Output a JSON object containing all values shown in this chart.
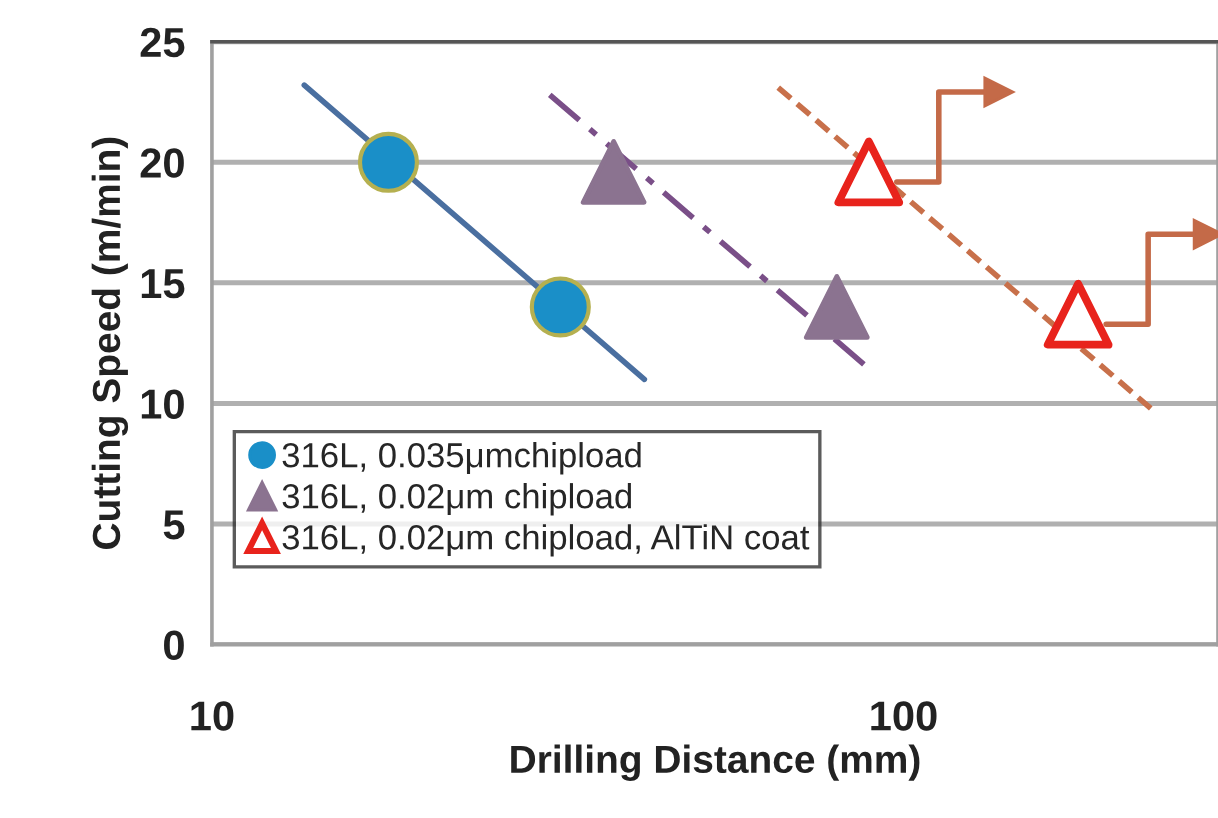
{
  "chart_data": {
    "type": "scatter",
    "xlabel": "Drilling Distance (mm)",
    "ylabel": "Cutting Speed (m/min)",
    "log": "x",
    "xlim": [
      10,
      285
    ],
    "xticks": [
      10,
      100
    ],
    "ylim": [
      0,
      25
    ],
    "yticks": [
      0,
      5,
      10,
      15,
      20,
      25
    ],
    "grid": "y",
    "legend": "lower left",
    "series": [
      {
        "name": "316L, 0.035μmchipload",
        "color": "#1a8fc8",
        "marker": "circle",
        "x": [
          18.0,
          31.9
        ],
        "values": [
          20,
          14
        ]
      },
      {
        "name": "316L, 0.02μm chipload",
        "color": "#8b7390",
        "marker": "triangle",
        "x": [
          38.1,
          80.1
        ],
        "values": [
          19.6,
          14
        ]
      },
      {
        "name": "316L, 0.02μm chipload, AlTiN coat",
        "color": "#e8231c",
        "marker": "triangle",
        "x": [
          89.1,
          178.9
        ],
        "values": [
          19.6,
          13.7
        ]
      },
      {
        "type": "line",
        "color": "#4a6fa0",
        "line_style": "solid",
        "x": [
          13.6,
          42.2
        ],
        "values": [
          23.2,
          11
        ]
      },
      {
        "type": "line",
        "color": "#7a4f88",
        "line_style": "dashdot",
        "x": [
          30.8,
          89.5
        ],
        "values": [
          22.8,
          11.4
        ]
      },
      {
        "type": "line",
        "color": "#c8704a",
        "line_style": "dashed",
        "x": [
          65.9,
          232
        ],
        "values": [
          23.1,
          9.6
        ]
      }
    ]
  }
}
